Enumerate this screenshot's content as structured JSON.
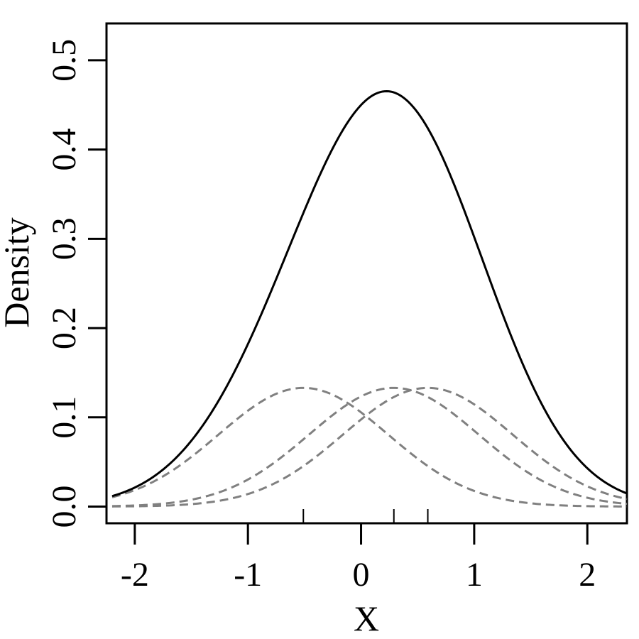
{
  "chart_data": {
    "type": "line",
    "xlabel": "X",
    "ylabel": "Density",
    "xlim": [
      -2.25,
      2.35
    ],
    "ylim": [
      -0.0187,
      0.5413
    ],
    "x_ticks": [
      -2,
      -1,
      0,
      1,
      2
    ],
    "x_tick_labels": [
      "-2",
      "-1",
      "0",
      "1",
      "2"
    ],
    "y_ticks": [
      0.0,
      0.1,
      0.2,
      0.3,
      0.4,
      0.5
    ],
    "y_tick_labels": [
      "0.0",
      "0.1",
      "0.2",
      "0.3",
      "0.4",
      "0.5"
    ],
    "grid": false,
    "legend": "none",
    "rug": [
      -0.51,
      0.29,
      0.59
    ],
    "kernel_sd": 0.75,
    "kernel_weight": 0.25,
    "series": [
      {
        "kind": "density",
        "style": "solid",
        "color": "#000000",
        "x": [
          -2.2,
          -2.0,
          -1.75,
          -1.5,
          -1.25,
          -1.0,
          -0.75,
          -0.5,
          -0.25,
          0.0,
          0.15,
          0.27,
          0.4,
          0.6,
          0.8,
          1.0,
          1.25,
          1.5,
          1.75,
          2.0,
          2.35
        ],
        "y": [
          0.004,
          0.009,
          0.024,
          0.056,
          0.108,
          0.181,
          0.267,
          0.352,
          0.425,
          0.481,
          0.509,
          0.519,
          0.512,
          0.47,
          0.397,
          0.301,
          0.177,
          0.084,
          0.036,
          0.014,
          0.003
        ]
      },
      {
        "kind": "kernel",
        "style": "dashed",
        "color": "#808080",
        "center": -0.51
      },
      {
        "kind": "kernel",
        "style": "dashed",
        "color": "#808080",
        "center": 0.29
      },
      {
        "kind": "kernel",
        "style": "dashed",
        "color": "#808080",
        "center": 0.59
      }
    ]
  }
}
